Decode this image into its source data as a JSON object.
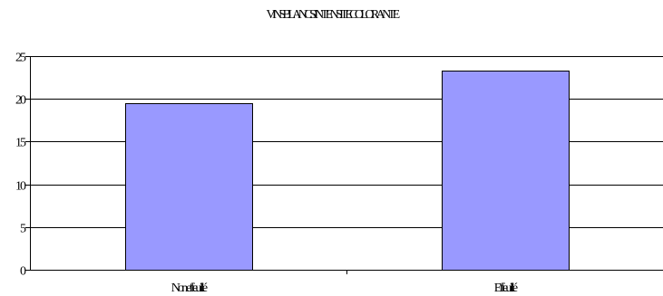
{
  "chart_data": {
    "type": "bar",
    "title": "VINS BLANCS - INTENSITE COLORANTE",
    "xlabel": "",
    "ylabel": "",
    "categories": [
      "Non effeuillé",
      "Effeuillé"
    ],
    "values": [
      19.5,
      23.3
    ],
    "ylim": [
      0,
      25
    ],
    "yticks": [
      0,
      5,
      10,
      15,
      20,
      25
    ],
    "grid": true,
    "legend": "none",
    "bar_color": "#9999ff"
  }
}
